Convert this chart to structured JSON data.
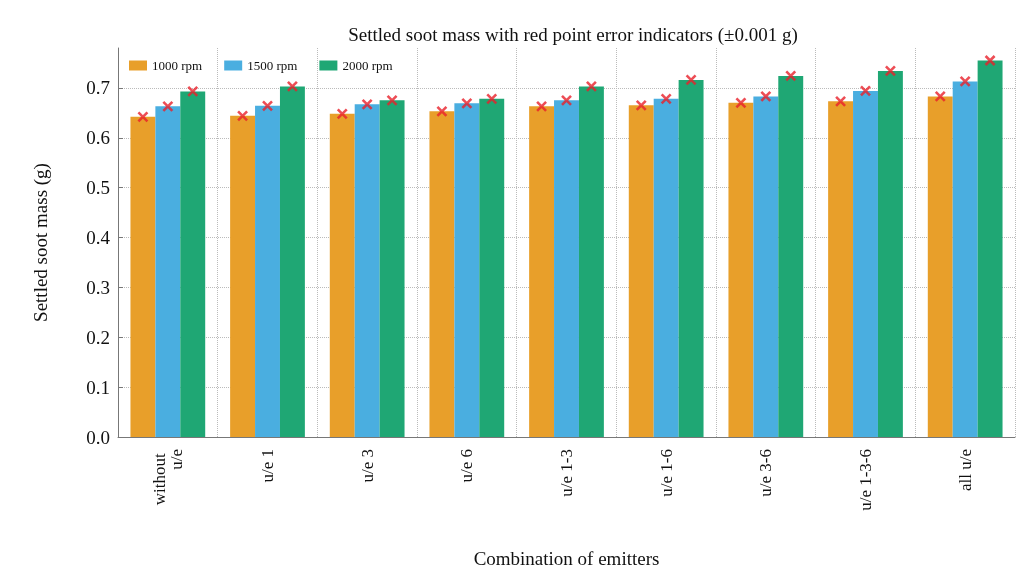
{
  "chart_data": {
    "type": "bar",
    "title": "Settled soot mass with red point error indicators (±0.001 g)",
    "xlabel": "Combination of emitters",
    "ylabel": "Settled soot mass (g)",
    "categories": [
      "without u/e",
      "u/e 1",
      "u/e 3",
      "u/e 6",
      "u/e 1-3",
      "u/e 1-6",
      "u/e 3-6",
      "u/e 1-3-6",
      "all u/e"
    ],
    "series": [
      {
        "name": "1000 rpm",
        "color": "#e89f2a",
        "values": [
          0.642,
          0.644,
          0.648,
          0.653,
          0.663,
          0.665,
          0.67,
          0.673,
          0.683
        ]
      },
      {
        "name": "1500 rpm",
        "color": "#4aaee0",
        "values": [
          0.663,
          0.664,
          0.667,
          0.669,
          0.675,
          0.678,
          0.683,
          0.694,
          0.713
        ]
      },
      {
        "name": "2000 rpm",
        "color": "#1fa774",
        "values": [
          0.693,
          0.703,
          0.675,
          0.678,
          0.703,
          0.716,
          0.724,
          0.734,
          0.755
        ]
      },
      {
        "type": "scatter",
        "marker": "cross",
        "color": "#e8202a",
        "x": [
          "without u/e",
          "u/e 1",
          "u/e 3",
          "u/e 6",
          "u/e 1-3",
          "u/e 1-6",
          "u/e 3-6",
          "u/e 1-3-6",
          "all u/e"
        ],
        "values": [
          0.642,
          0.644,
          0.648,
          0.653,
          0.663,
          0.665,
          0.67,
          0.673,
          0.683
        ]
      },
      {
        "type": "scatter",
        "marker": "cross",
        "color": "#e8202a",
        "x": [
          "without u/e",
          "u/e 1",
          "u/e 3",
          "u/e 6",
          "u/e 1-3",
          "u/e 1-6",
          "u/e 3-6",
          "u/e 1-3-6",
          "all u/e"
        ],
        "values": [
          0.663,
          0.664,
          0.667,
          0.669,
          0.675,
          0.678,
          0.683,
          0.694,
          0.713
        ]
      },
      {
        "type": "scatter",
        "marker": "cross",
        "color": "#e8202a",
        "x": [
          "without u/e",
          "u/e 1",
          "u/e 3",
          "u/e 6",
          "u/e 1-3",
          "u/e 1-6",
          "u/e 3-6",
          "u/e 1-3-6",
          "all u/e"
        ],
        "values": [
          0.693,
          0.703,
          0.675,
          0.678,
          0.703,
          0.716,
          0.724,
          0.734,
          0.755
        ]
      }
    ],
    "ylim": [
      0,
      0.78
    ],
    "yticks": [
      {
        "value": 0,
        "label": "0.0"
      },
      {
        "value": 0.1,
        "label": "0.1"
      },
      {
        "value": 0.2,
        "label": "0.2"
      },
      {
        "value": 0.3,
        "label": "0.3"
      },
      {
        "value": 0.4,
        "label": "0.4"
      },
      {
        "value": 0.5,
        "label": "0.5"
      },
      {
        "value": 0.6,
        "label": "0.6"
      },
      {
        "value": 0.7,
        "label": "0.7"
      }
    ],
    "grid": true,
    "legend": "top left"
  }
}
